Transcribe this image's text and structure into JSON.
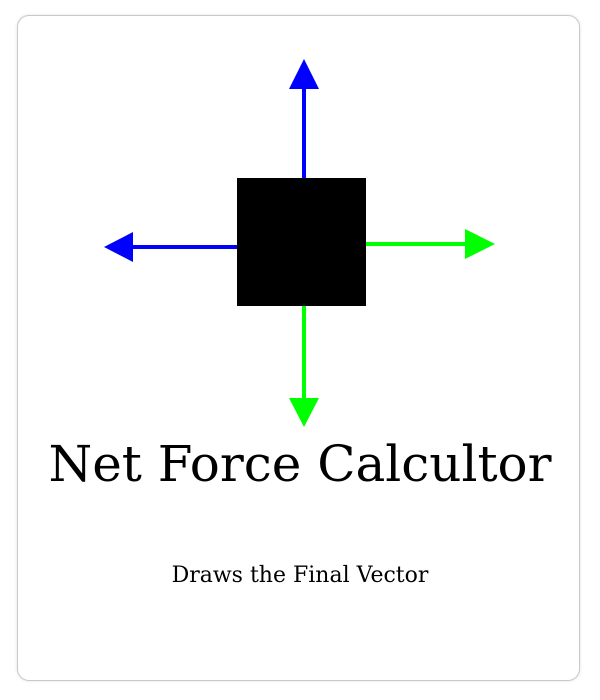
{
  "card": {
    "title": "Net Force Calcultor",
    "subtitle": "Draws the Final Vector"
  },
  "diagram": {
    "object_color": "#000000",
    "vectors": [
      {
        "name": "up",
        "color": "#0000ff"
      },
      {
        "name": "left",
        "color": "#0000ff"
      },
      {
        "name": "right",
        "color": "#00ff00"
      },
      {
        "name": "down",
        "color": "#00ff00"
      }
    ]
  }
}
